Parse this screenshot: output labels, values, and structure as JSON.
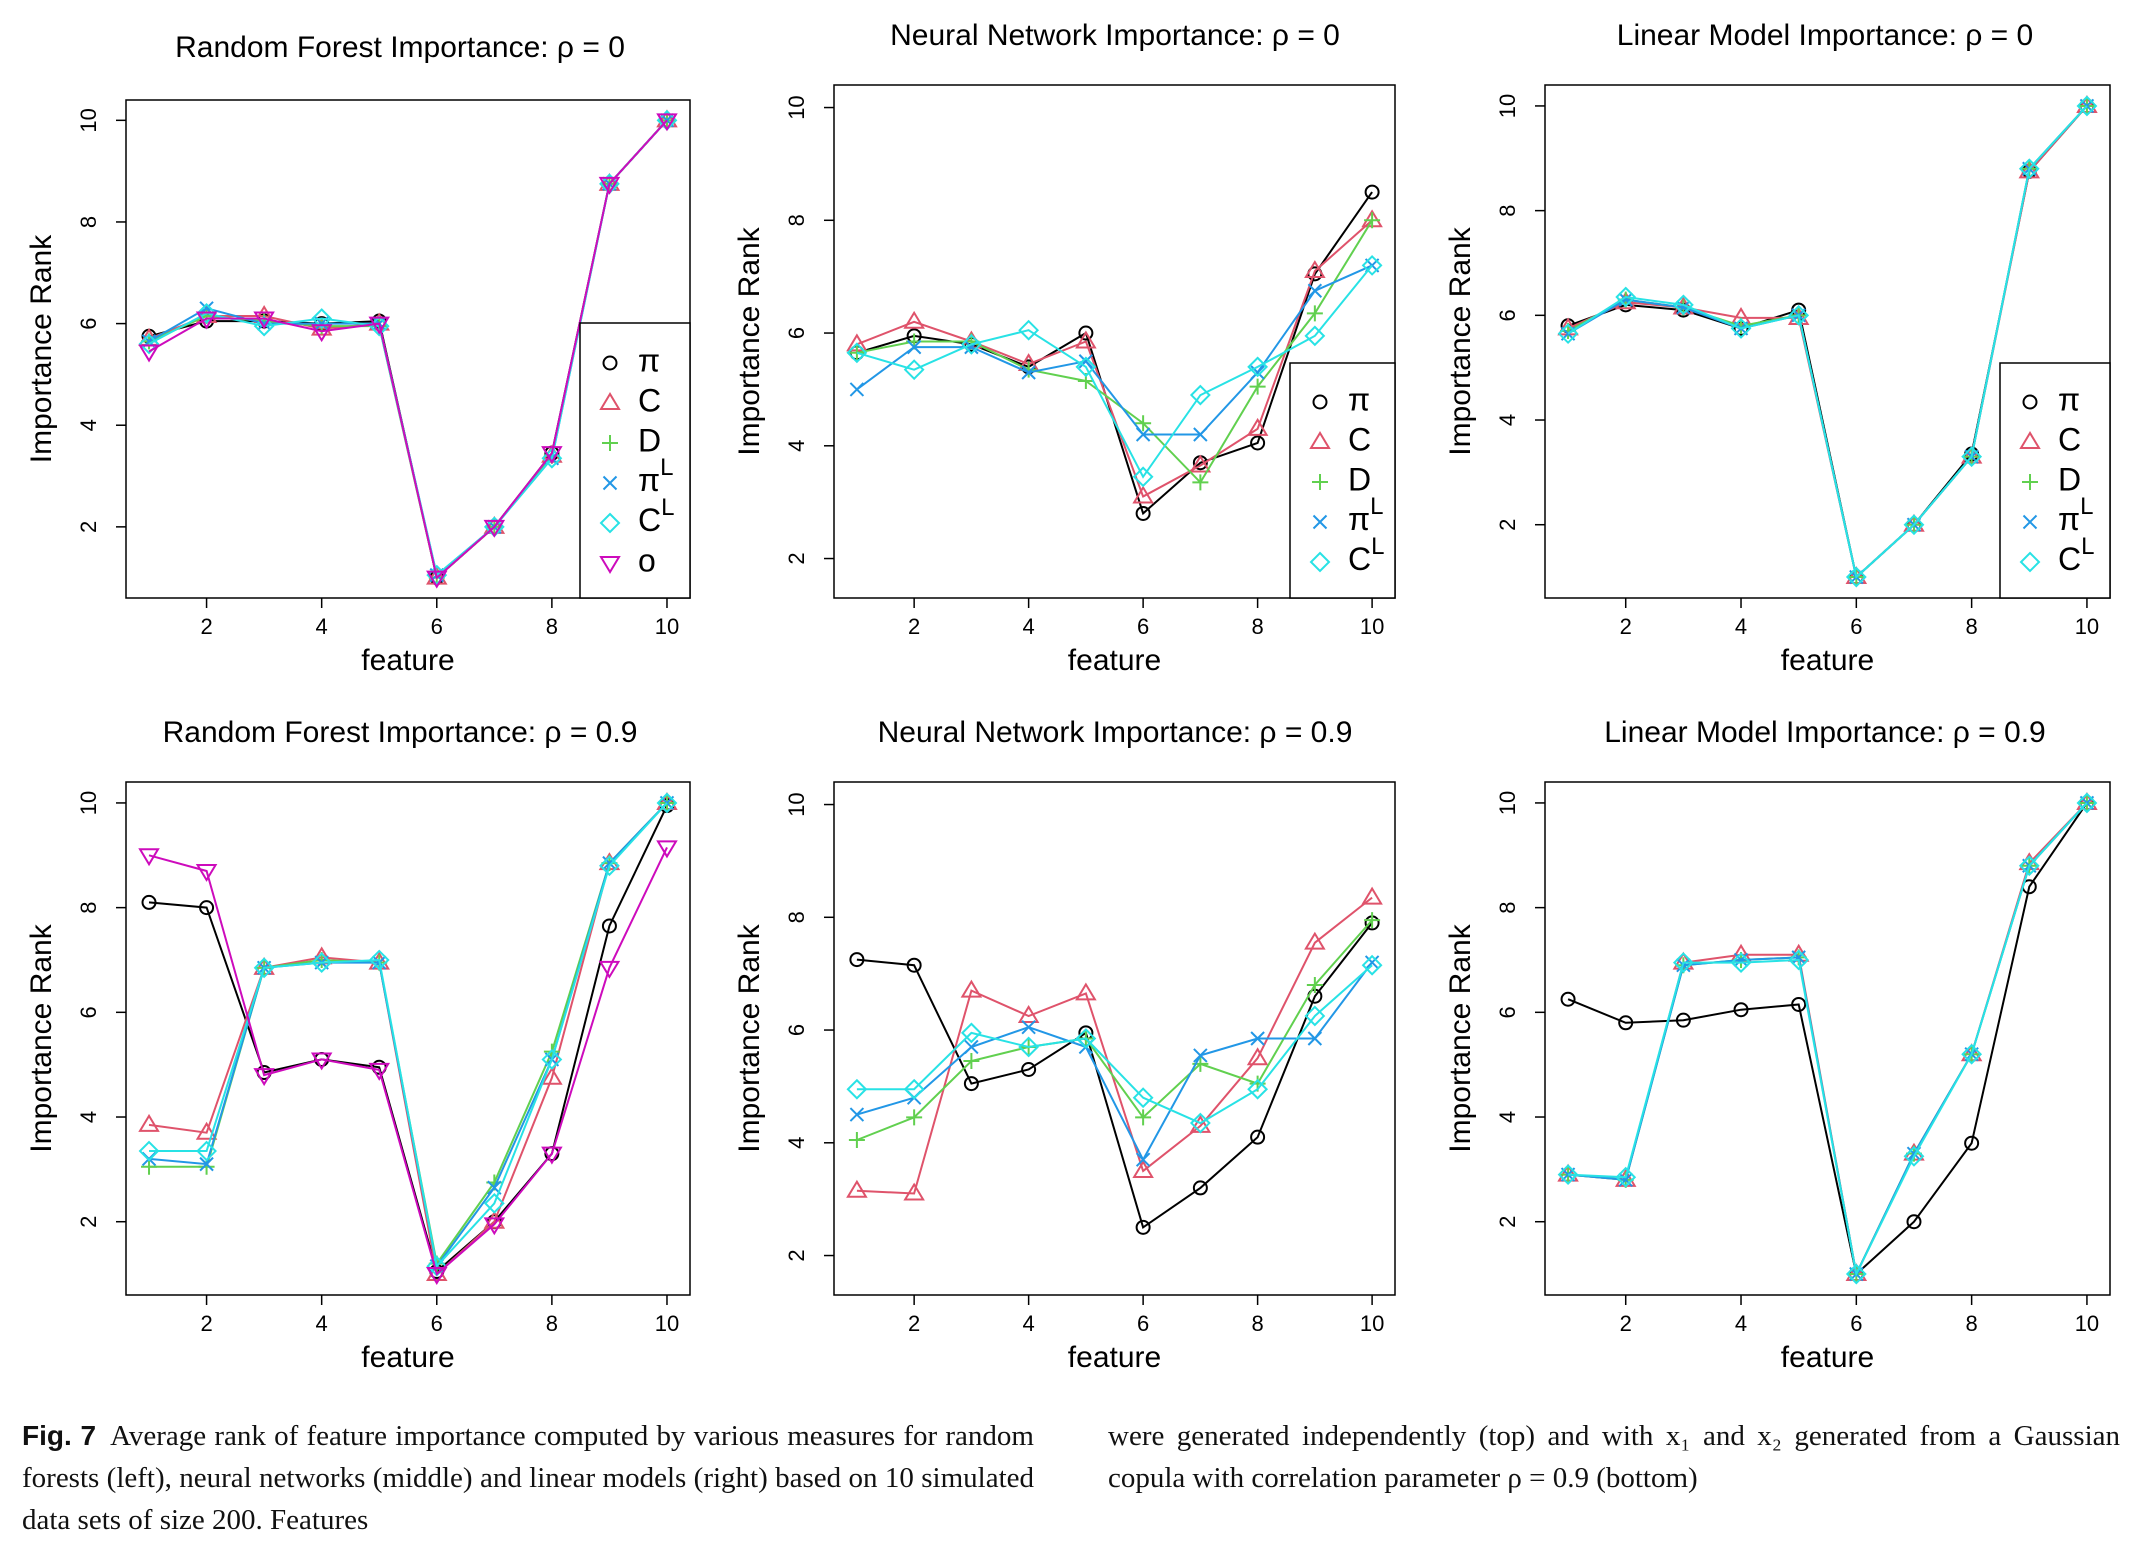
{
  "chart_data": [
    {
      "type": "line",
      "title": "Random Forest Importance: ρ = 0",
      "xlabel": "feature",
      "ylabel": "Importance Rank",
      "xlim": [
        0.6,
        10.4
      ],
      "ylim": [
        0.6,
        10.4
      ],
      "xticks": [
        2,
        4,
        6,
        8,
        10
      ],
      "yticks": [
        2,
        4,
        6,
        8,
        10
      ],
      "legend_position": "right",
      "legend": [
        "π",
        "C",
        "D",
        "π^L",
        "C^L",
        "o"
      ],
      "x": [
        1,
        2,
        3,
        4,
        5,
        6,
        7,
        8,
        9,
        10
      ],
      "series": [
        {
          "name": "π",
          "marker": "circle",
          "color": "#000000",
          "values": [
            5.75,
            6.05,
            6.05,
            6.0,
            6.05,
            1.0,
            2.0,
            3.45,
            8.75,
            10.0
          ]
        },
        {
          "name": "C",
          "marker": "triangle",
          "color": "#DF536B",
          "values": [
            5.7,
            6.15,
            6.15,
            5.9,
            6.0,
            1.0,
            2.0,
            3.4,
            8.75,
            10.0
          ]
        },
        {
          "name": "D",
          "marker": "plus",
          "color": "#61D04F",
          "values": [
            5.65,
            6.15,
            6.05,
            5.95,
            5.95,
            1.0,
            2.0,
            3.4,
            8.75,
            10.0
          ]
        },
        {
          "name": "π^L",
          "marker": "x",
          "color": "#2297E6",
          "values": [
            5.65,
            6.3,
            6.0,
            6.0,
            6.0,
            1.05,
            2.0,
            3.35,
            8.75,
            10.0
          ]
        },
        {
          "name": "C^L",
          "marker": "diamond",
          "color": "#28E2E5",
          "values": [
            5.6,
            6.2,
            5.95,
            6.1,
            5.95,
            1.05,
            2.0,
            3.35,
            8.75,
            10.0
          ]
        },
        {
          "name": "o",
          "marker": "triangle-down",
          "color": "#CD0BBC",
          "values": [
            5.45,
            6.1,
            6.1,
            5.85,
            6.0,
            1.0,
            2.0,
            3.45,
            8.75,
            10.0
          ]
        }
      ]
    },
    {
      "type": "line",
      "title": "Neural Network Importance: ρ = 0",
      "xlabel": "feature",
      "ylabel": "Importance Rank",
      "xlim": [
        0.6,
        10.4
      ],
      "ylim": [
        1.3,
        10.4
      ],
      "xticks": [
        2,
        4,
        6,
        8,
        10
      ],
      "yticks": [
        2,
        4,
        6,
        8,
        10
      ],
      "legend_position": "bottom-right",
      "legend": [
        "π",
        "C",
        "D",
        "π^L",
        "C^L"
      ],
      "x": [
        1,
        2,
        3,
        4,
        5,
        6,
        7,
        8,
        9,
        10
      ],
      "series": [
        {
          "name": "π",
          "marker": "circle",
          "color": "#000000",
          "values": [
            5.65,
            5.95,
            5.8,
            5.4,
            6.0,
            2.8,
            3.7,
            4.05,
            7.05,
            8.5
          ]
        },
        {
          "name": "C",
          "marker": "triangle",
          "color": "#DF536B",
          "values": [
            5.8,
            6.2,
            5.85,
            5.45,
            5.85,
            3.1,
            3.65,
            4.3,
            7.1,
            8.0
          ]
        },
        {
          "name": "D",
          "marker": "plus",
          "color": "#61D04F",
          "values": [
            5.65,
            5.85,
            5.85,
            5.35,
            5.15,
            4.4,
            3.35,
            5.05,
            6.35,
            8.0
          ]
        },
        {
          "name": "π^L",
          "marker": "x",
          "color": "#2297E6",
          "values": [
            5.0,
            5.75,
            5.75,
            5.3,
            5.5,
            4.2,
            4.2,
            5.3,
            6.75,
            7.2
          ]
        },
        {
          "name": "C^L",
          "marker": "diamond",
          "color": "#28E2E5",
          "values": [
            5.65,
            5.35,
            5.8,
            6.05,
            5.4,
            3.45,
            4.9,
            5.4,
            5.95,
            7.2
          ]
        }
      ]
    },
    {
      "type": "line",
      "title": "Linear Model Importance: ρ = 0",
      "xlabel": "feature",
      "ylabel": "Importance Rank",
      "xlim": [
        0.6,
        10.4
      ],
      "ylim": [
        0.6,
        10.4
      ],
      "xticks": [
        2,
        4,
        6,
        8,
        10
      ],
      "yticks": [
        2,
        4,
        6,
        8,
        10
      ],
      "legend_position": "bottom-right",
      "legend": [
        "π",
        "C",
        "D",
        "π^L",
        "C^L"
      ],
      "x": [
        1,
        2,
        3,
        4,
        5,
        6,
        7,
        8,
        9,
        10
      ],
      "series": [
        {
          "name": "π",
          "marker": "circle",
          "color": "#000000",
          "values": [
            5.8,
            6.2,
            6.1,
            5.75,
            6.1,
            1.0,
            2.0,
            3.35,
            8.75,
            10.0
          ]
        },
        {
          "name": "C",
          "marker": "triangle",
          "color": "#DF536B",
          "values": [
            5.75,
            6.25,
            6.15,
            5.95,
            5.95,
            1.0,
            2.0,
            3.3,
            8.75,
            10.0
          ]
        },
        {
          "name": "D",
          "marker": "plus",
          "color": "#61D04F",
          "values": [
            5.7,
            6.3,
            6.15,
            5.8,
            6.0,
            1.0,
            2.0,
            3.3,
            8.8,
            10.0
          ]
        },
        {
          "name": "π^L",
          "marker": "x",
          "color": "#2297E6",
          "values": [
            5.65,
            6.3,
            6.15,
            5.75,
            6.0,
            1.0,
            2.0,
            3.3,
            8.8,
            10.0
          ]
        },
        {
          "name": "C^L",
          "marker": "diamond",
          "color": "#28E2E5",
          "values": [
            5.65,
            6.35,
            6.2,
            5.75,
            6.0,
            1.0,
            2.0,
            3.3,
            8.8,
            10.0
          ]
        }
      ]
    },
    {
      "type": "line",
      "title": "Random Forest Importance: ρ = 0.9",
      "xlabel": "feature",
      "ylabel": "Importance Rank",
      "xlim": [
        0.6,
        10.4
      ],
      "ylim": [
        0.6,
        10.4
      ],
      "xticks": [
        2,
        4,
        6,
        8,
        10
      ],
      "yticks": [
        2,
        4,
        6,
        8,
        10
      ],
      "legend": [],
      "x": [
        1,
        2,
        3,
        4,
        5,
        6,
        7,
        8,
        9,
        10
      ],
      "series": [
        {
          "name": "π",
          "marker": "circle",
          "color": "#000000",
          "values": [
            8.1,
            8.0,
            4.85,
            5.1,
            4.95,
            1.05,
            2.0,
            3.3,
            7.65,
            9.95
          ]
        },
        {
          "name": "C",
          "marker": "triangle",
          "color": "#DF536B",
          "values": [
            3.85,
            3.7,
            6.85,
            7.05,
            6.95,
            1.0,
            2.0,
            4.75,
            8.85,
            10.0
          ]
        },
        {
          "name": "D",
          "marker": "plus",
          "color": "#61D04F",
          "values": [
            3.05,
            3.05,
            6.85,
            7.0,
            6.95,
            1.2,
            2.75,
            5.25,
            8.85,
            10.0
          ]
        },
        {
          "name": "π^L",
          "marker": "x",
          "color": "#2297E6",
          "values": [
            3.2,
            3.1,
            6.85,
            6.95,
            6.95,
            1.15,
            2.65,
            5.1,
            8.85,
            10.0
          ]
        },
        {
          "name": "C^L",
          "marker": "diamond",
          "color": "#28E2E5",
          "values": [
            3.35,
            3.35,
            6.85,
            6.95,
            7.0,
            1.15,
            2.35,
            5.1,
            8.8,
            10.0
          ]
        },
        {
          "name": "o",
          "marker": "triangle-down",
          "color": "#CD0BBC",
          "values": [
            9.0,
            8.7,
            4.8,
            5.1,
            4.9,
            1.0,
            1.95,
            3.3,
            6.85,
            9.15
          ]
        }
      ]
    },
    {
      "type": "line",
      "title": "Neural Network Importance: ρ = 0.9",
      "xlabel": "feature",
      "ylabel": "Importance Rank",
      "xlim": [
        0.6,
        10.4
      ],
      "ylim": [
        1.3,
        10.4
      ],
      "xticks": [
        2,
        4,
        6,
        8,
        10
      ],
      "yticks": [
        2,
        4,
        6,
        8,
        10
      ],
      "legend": [],
      "x": [
        1,
        2,
        3,
        4,
        5,
        6,
        7,
        8,
        9,
        10
      ],
      "series": [
        {
          "name": "π",
          "marker": "circle",
          "color": "#000000",
          "values": [
            7.25,
            7.15,
            5.05,
            5.3,
            5.95,
            2.5,
            3.2,
            4.1,
            6.6,
            7.9
          ]
        },
        {
          "name": "C",
          "marker": "triangle",
          "color": "#DF536B",
          "values": [
            3.15,
            3.1,
            6.7,
            6.25,
            6.65,
            3.5,
            4.3,
            5.5,
            7.55,
            8.35
          ]
        },
        {
          "name": "D",
          "marker": "plus",
          "color": "#61D04F",
          "values": [
            4.05,
            4.45,
            5.45,
            5.7,
            5.85,
            4.45,
            5.4,
            5.05,
            6.8,
            7.95
          ]
        },
        {
          "name": "π^L",
          "marker": "x",
          "color": "#2297E6",
          "values": [
            4.5,
            4.8,
            5.7,
            6.05,
            5.7,
            3.7,
            5.55,
            5.85,
            5.85,
            7.2
          ]
        },
        {
          "name": "C^L",
          "marker": "diamond",
          "color": "#28E2E5",
          "values": [
            4.95,
            4.95,
            5.95,
            5.7,
            5.85,
            4.8,
            4.35,
            4.95,
            6.25,
            7.15
          ]
        }
      ]
    },
    {
      "type": "line",
      "title": "Linear Model Importance: ρ = 0.9",
      "xlabel": "feature",
      "ylabel": "Importance Rank",
      "xlim": [
        0.6,
        10.4
      ],
      "ylim": [
        0.6,
        10.4
      ],
      "xticks": [
        2,
        4,
        6,
        8,
        10
      ],
      "yticks": [
        2,
        4,
        6,
        8,
        10
      ],
      "legend": [],
      "x": [
        1,
        2,
        3,
        4,
        5,
        6,
        7,
        8,
        9,
        10
      ],
      "series": [
        {
          "name": "π",
          "marker": "circle",
          "color": "#000000",
          "values": [
            6.25,
            5.8,
            5.85,
            6.05,
            6.15,
            1.0,
            2.0,
            3.5,
            8.4,
            10.0
          ]
        },
        {
          "name": "C",
          "marker": "triangle",
          "color": "#DF536B",
          "values": [
            2.9,
            2.8,
            6.95,
            7.1,
            7.1,
            1.0,
            3.3,
            5.2,
            8.85,
            10.0
          ]
        },
        {
          "name": "D",
          "marker": "plus",
          "color": "#61D04F",
          "values": [
            2.9,
            2.8,
            6.9,
            7.0,
            7.05,
            1.0,
            3.3,
            5.2,
            8.8,
            10.0
          ]
        },
        {
          "name": "π^L",
          "marker": "x",
          "color": "#2297E6",
          "values": [
            2.9,
            2.8,
            6.9,
            7.0,
            7.05,
            1.0,
            3.3,
            5.2,
            8.8,
            10.0
          ]
        },
        {
          "name": "C^L",
          "marker": "diamond",
          "color": "#28E2E5",
          "values": [
            2.9,
            2.85,
            6.95,
            6.95,
            7.0,
            1.0,
            3.25,
            5.2,
            8.8,
            10.0
          ]
        }
      ]
    }
  ],
  "caption": {
    "label": "Fig. 7",
    "text_left": "Average rank of feature importance computed by various measures for random forests (left), neural networks (middle) and linear models (right) based on 10 simulated data sets of size 200. Features",
    "text_right": "were generated independently (top) and with x₁ and x₂ generated from a Gaussian copula with correlation parameter ρ = 0.9 (bottom)"
  }
}
